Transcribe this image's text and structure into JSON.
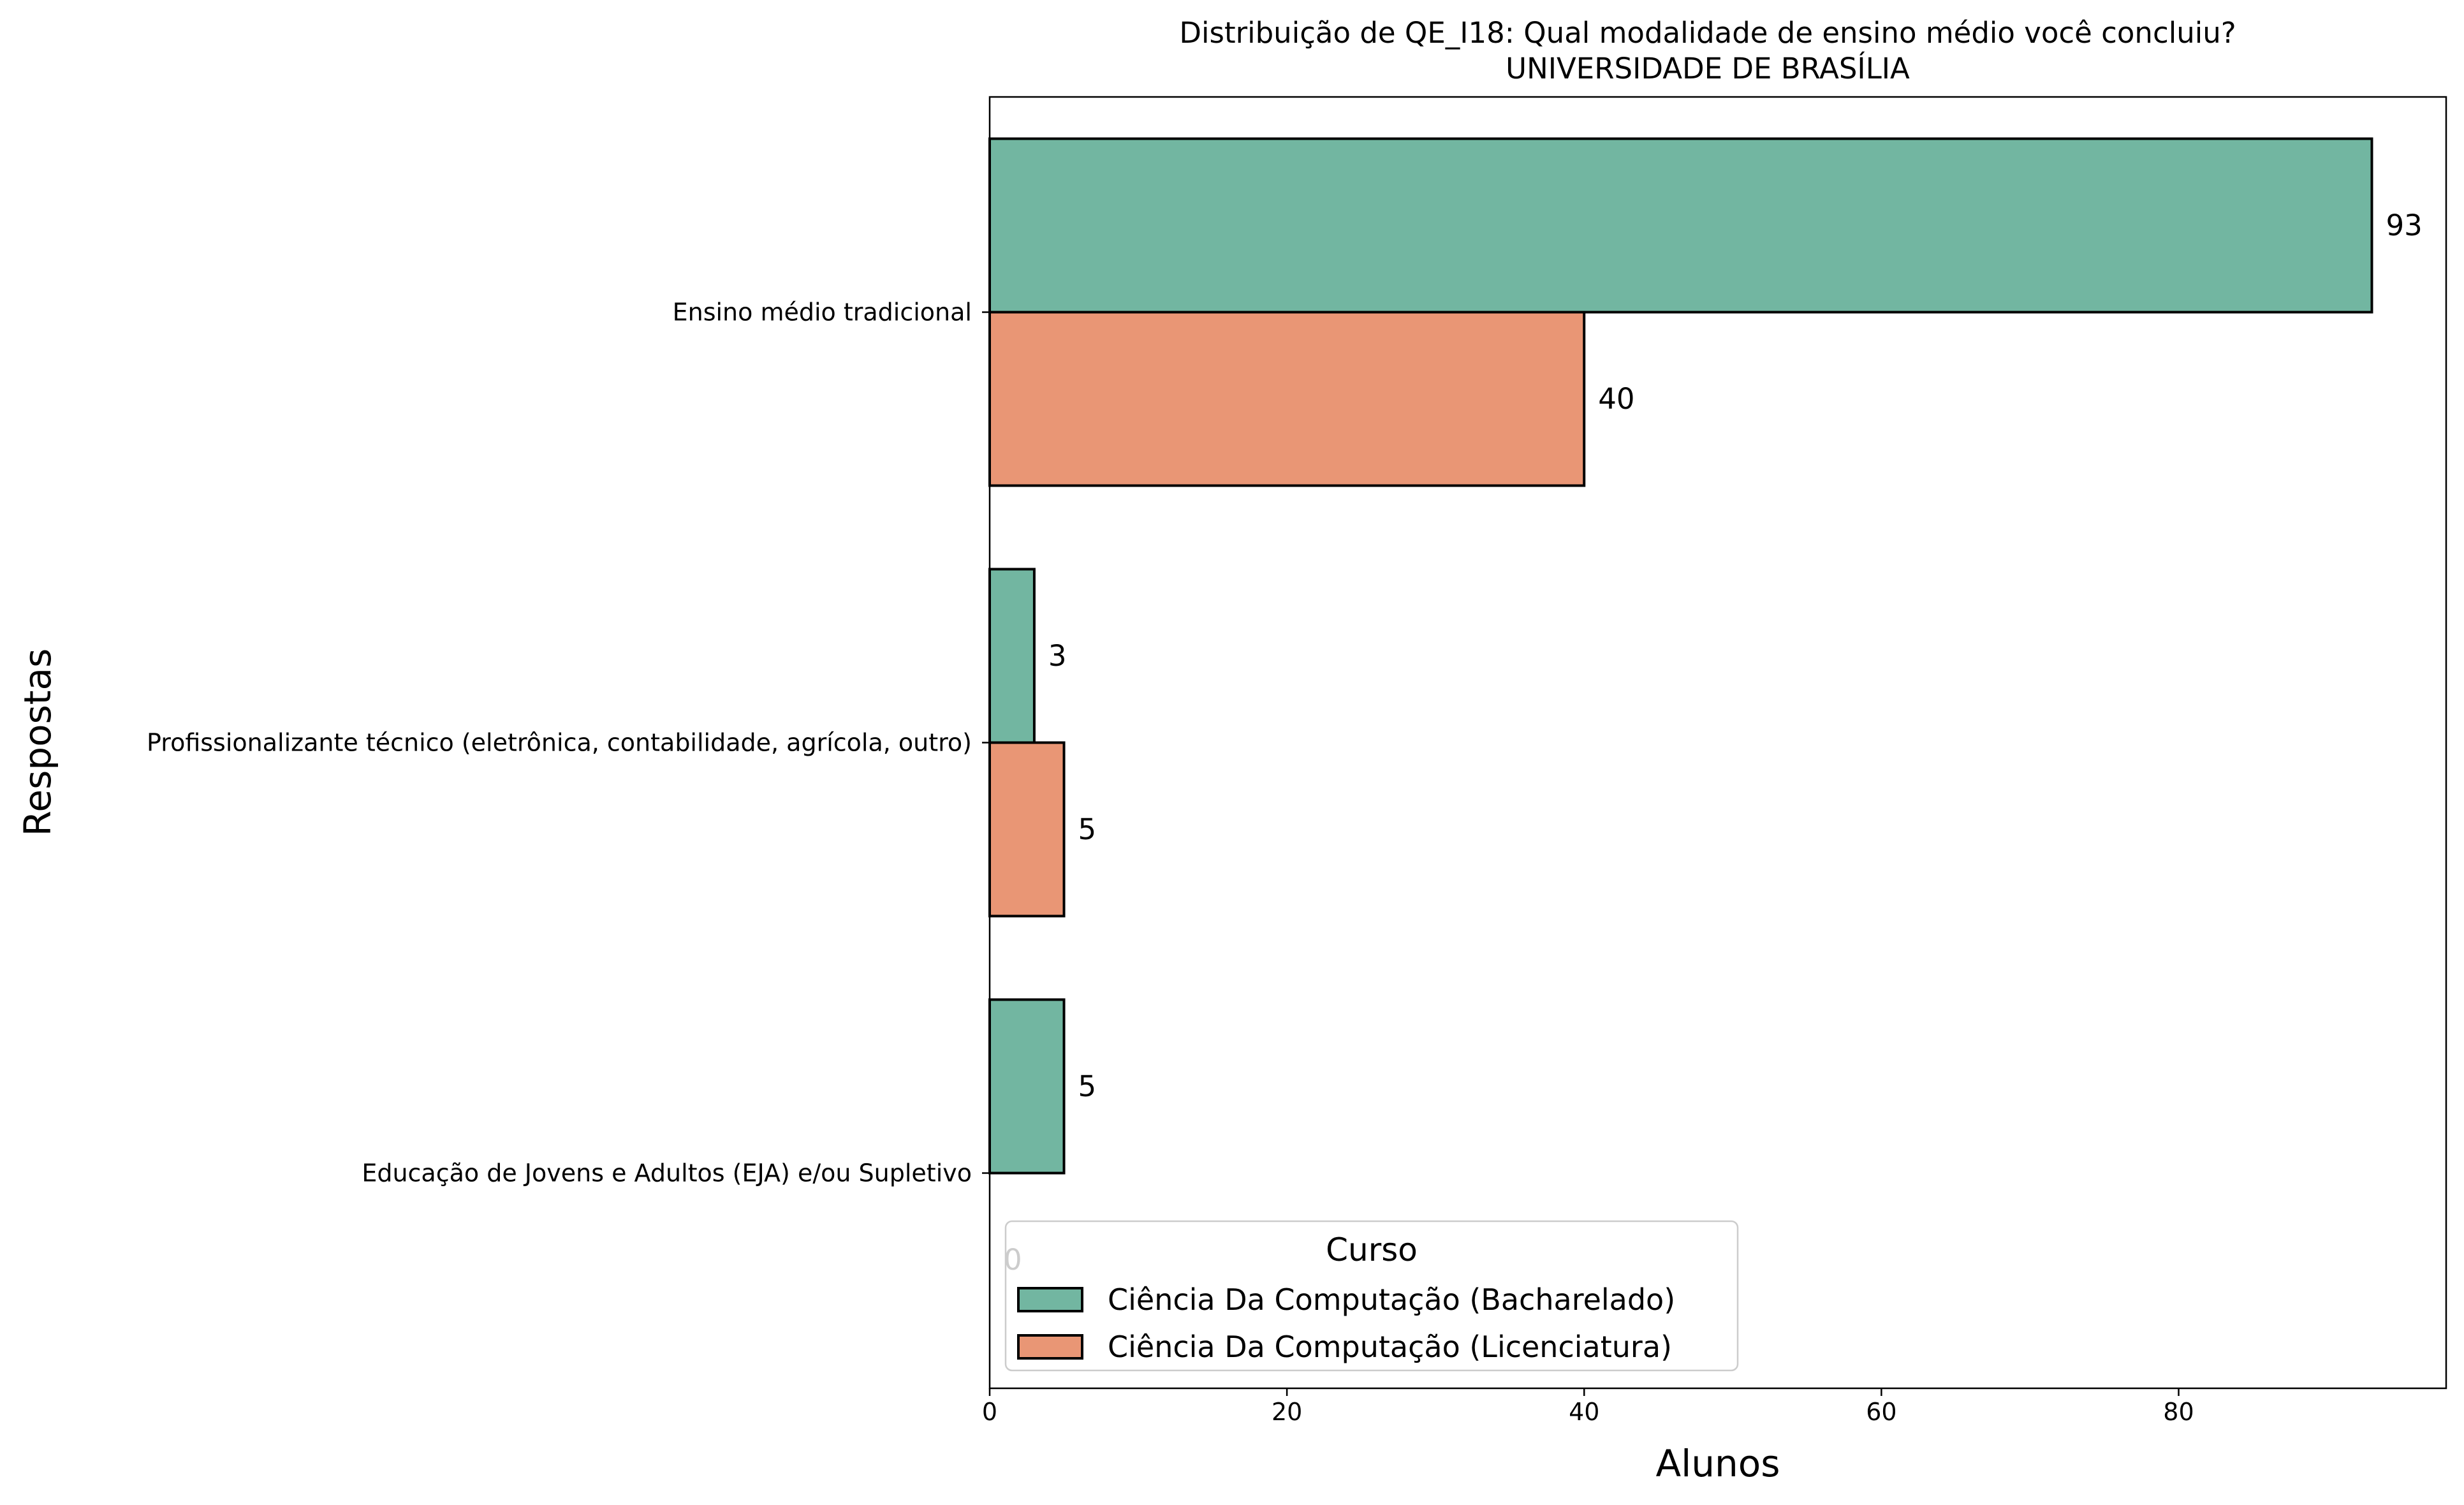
{
  "chart_data": {
    "type": "bar",
    "orientation": "horizontal",
    "title": "Distribuição de QE_I18: Qual modalidade de ensino médio você concluiu?",
    "subtitle": "UNIVERSIDADE DE BRASÍLIA",
    "xlabel": "Alunos",
    "ylabel": "Respostas",
    "xlim": [
      0,
      98
    ],
    "xticks": [
      0,
      20,
      40,
      60,
      80
    ],
    "grid": false,
    "categories": [
      "Ensino médio tradicional",
      "Profissionalizante técnico (eletrônica, contabilidade, agrícola, outro)",
      "Educação de Jovens e Adultos (EJA) e/ou Supletivo"
    ],
    "series": [
      {
        "name": "Ciência Da Computação (Bacharelado)",
        "color": "#72b6a1",
        "values": [
          93,
          3,
          5
        ]
      },
      {
        "name": "Ciência Da Computação (Licenciatura)",
        "color": "#e99675",
        "values": [
          40,
          5,
          0
        ]
      }
    ],
    "data_labels": [
      {
        "text": "93",
        "category": 0,
        "series": 0
      },
      {
        "text": "40",
        "category": 0,
        "series": 1
      },
      {
        "text": "3",
        "category": 1,
        "series": 0
      },
      {
        "text": "5",
        "category": 1,
        "series": 1
      },
      {
        "text": "5",
        "category": 2,
        "series": 0
      },
      {
        "text": "0",
        "category": 2,
        "series": 1
      }
    ],
    "legend": {
      "title": "Curso",
      "placement": "lower-left"
    }
  }
}
